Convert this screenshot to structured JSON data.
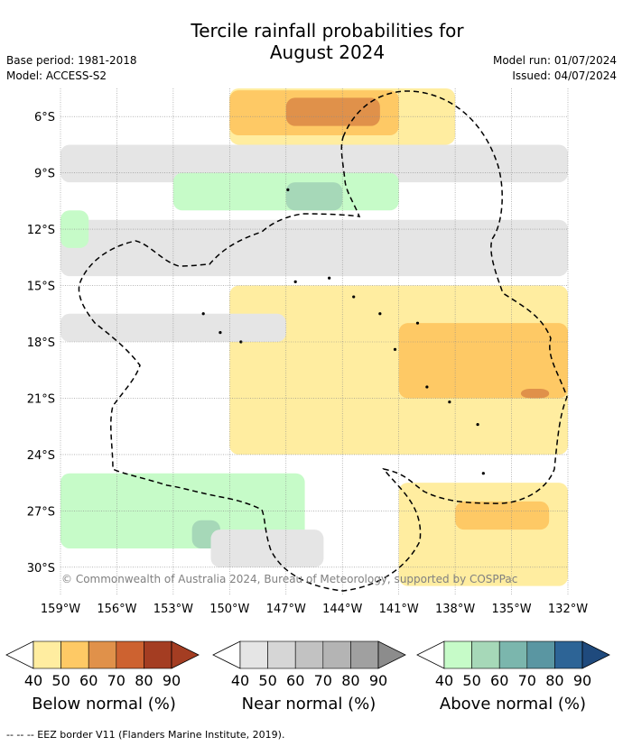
{
  "header": {
    "title_line1": "Tercile rainfall probabilities for",
    "title_line2": "August 2024",
    "base_period": "Base period: 1981-2018",
    "model": "Model: ACCESS-S2",
    "model_run": "Model run: 01/07/2024",
    "issued": "Issued: 04/07/2024"
  },
  "copyright": "© Commonwealth of Australia 2024, Bureau of Meteorology, supported by COSPPac",
  "chart_data": {
    "type": "heatmap",
    "title": "Tercile rainfall probabilities for August 2024",
    "x_ticks": [
      "159°W",
      "156°W",
      "153°W",
      "150°W",
      "147°W",
      "144°W",
      "141°W",
      "138°W",
      "135°W",
      "132°W"
    ],
    "x_tick_values": [
      -159,
      -156,
      -153,
      -150,
      -147,
      -144,
      -141,
      -138,
      -135,
      -132
    ],
    "y_ticks": [
      "6°S",
      "9°S",
      "12°S",
      "15°S",
      "18°S",
      "21°S",
      "24°S",
      "27°S",
      "30°S"
    ],
    "y_tick_values": [
      -6,
      -9,
      -12,
      -15,
      -18,
      -21,
      -24,
      -27,
      -30
    ],
    "xlim": [
      -159,
      -132
    ],
    "ylim": [
      -31.5,
      -4.5
    ],
    "grid": true,
    "categories": [
      {
        "name": "Below normal (%)",
        "bins": [
          40,
          50,
          60,
          70,
          80,
          90
        ],
        "colors": [
          "#ffeda0",
          "#fec965",
          "#e0914a",
          "#cd6230",
          "#a43d22",
          "#a43d22"
        ]
      },
      {
        "name": "Near normal (%)",
        "bins": [
          40,
          50,
          60,
          70,
          80,
          90
        ],
        "colors": [
          "#e5e5e5",
          "#d6d6d6",
          "#c2c2c2",
          "#b4b4b4",
          "#a0a0a0",
          "#8c8c8c"
        ]
      },
      {
        "name": "Above normal (%)",
        "bins": [
          40,
          50,
          60,
          70,
          80,
          90
        ],
        "colors": [
          "#c6fbc8",
          "#a6d8b8",
          "#7bb6ad",
          "#5a96a2",
          "#2d6496",
          "#1f4a7d"
        ]
      }
    ],
    "regions": [
      {
        "category": "Below normal (%)",
        "level": 40,
        "lon": [
          -150,
          -138
        ],
        "lat": [
          -4.5,
          -7.5
        ]
      },
      {
        "category": "Below normal (%)",
        "level": 50,
        "lon": [
          -150,
          -141
        ],
        "lat": [
          -4.6,
          -7
        ]
      },
      {
        "category": "Below normal (%)",
        "level": 60,
        "lon": [
          -147,
          -142
        ],
        "lat": [
          -5,
          -6.5
        ]
      },
      {
        "category": "Near normal (%)",
        "level": 40,
        "lon": [
          -159,
          -132
        ],
        "lat": [
          -7.5,
          -9.5
        ]
      },
      {
        "category": "Above normal (%)",
        "level": 40,
        "lon": [
          -153,
          -141
        ],
        "lat": [
          -9,
          -11
        ]
      },
      {
        "category": "Above normal (%)",
        "level": 50,
        "lon": [
          -147,
          -144
        ],
        "lat": [
          -9.5,
          -11
        ]
      },
      {
        "category": "Near normal (%)",
        "level": 40,
        "lon": [
          -159,
          -132
        ],
        "lat": [
          -11.5,
          -14.5
        ]
      },
      {
        "category": "Below normal (%)",
        "level": 40,
        "lon": [
          -150,
          -132
        ],
        "lat": [
          -15,
          -24
        ]
      },
      {
        "category": "Below normal (%)",
        "level": 50,
        "lon": [
          -141,
          -132
        ],
        "lat": [
          -17,
          -21
        ]
      },
      {
        "category": "Below normal (%)",
        "level": 60,
        "lon": [
          -134.5,
          -133
        ],
        "lat": [
          -20.5,
          -21
        ]
      },
      {
        "category": "Near normal (%)",
        "level": 40,
        "lon": [
          -159,
          -147
        ],
        "lat": [
          -16.5,
          -18
        ]
      },
      {
        "category": "Above normal (%)",
        "level": 40,
        "lon": [
          -159,
          -146
        ],
        "lat": [
          -25,
          -29
        ]
      },
      {
        "category": "Above normal (%)",
        "level": 50,
        "lon": [
          -152,
          -150.5
        ],
        "lat": [
          -27.5,
          -29
        ]
      },
      {
        "category": "Near normal (%)",
        "level": 40,
        "lon": [
          -151,
          -145
        ],
        "lat": [
          -28,
          -30
        ]
      },
      {
        "category": "Below normal (%)",
        "level": 40,
        "lon": [
          -141,
          -132
        ],
        "lat": [
          -25.5,
          -31
        ]
      },
      {
        "category": "Below normal (%)",
        "level": 50,
        "lon": [
          -138,
          -133
        ],
        "lat": [
          -26.5,
          -28
        ]
      },
      {
        "category": "Above normal (%)",
        "level": 40,
        "lon": [
          -159,
          -157.5
        ],
        "lat": [
          -11,
          -13
        ]
      }
    ]
  },
  "legends": [
    {
      "title": "Below normal (%)",
      "labels": [
        "40",
        "50",
        "60",
        "70",
        "80",
        "90"
      ]
    },
    {
      "title": "Near normal (%)",
      "labels": [
        "40",
        "50",
        "60",
        "70",
        "80",
        "90"
      ]
    },
    {
      "title": "Above normal (%)",
      "labels": [
        "40",
        "50",
        "60",
        "70",
        "80",
        "90"
      ]
    }
  ],
  "footnote": "--  --  -- EEZ border V11 (Flanders Marine Institute, 2019)."
}
